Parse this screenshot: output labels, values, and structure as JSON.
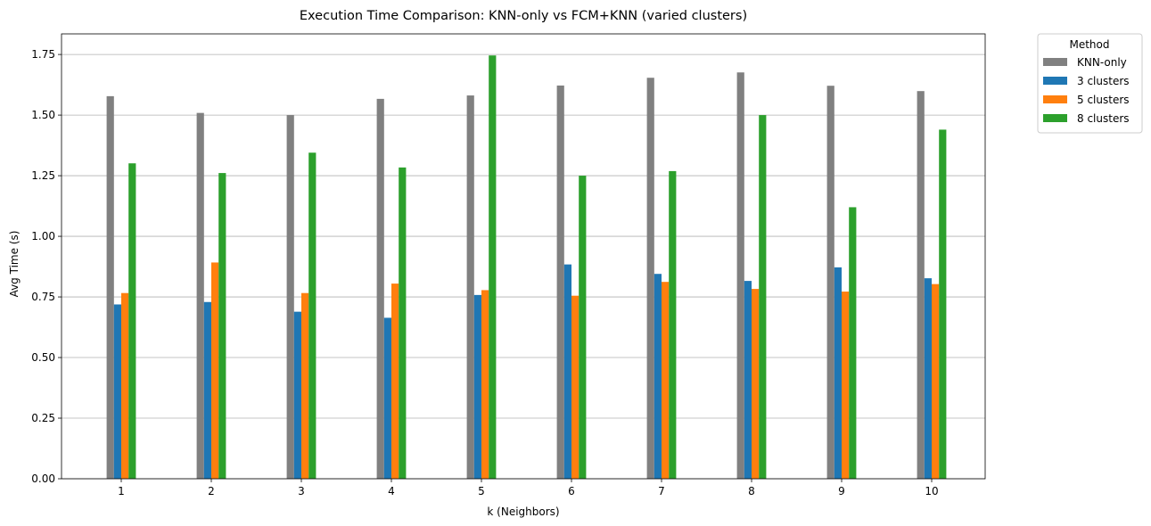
{
  "chart_data": {
    "type": "bar",
    "title": "Execution Time Comparison: KNN-only vs FCM+KNN (varied clusters)",
    "xlabel": "k (Neighbors)",
    "ylabel": "Avg Time (s)",
    "categories": [
      "1",
      "2",
      "3",
      "4",
      "5",
      "6",
      "7",
      "8",
      "9",
      "10"
    ],
    "ylim": [
      0,
      1.835
    ],
    "yticks": [
      "0.00",
      "0.25",
      "0.50",
      "0.75",
      "1.00",
      "1.25",
      "1.50",
      "1.75"
    ],
    "grid": "horizontal",
    "legend": {
      "title": "Method",
      "placement": "outside top-right"
    },
    "series": [
      {
        "name": "KNN-only",
        "color": "#808080",
        "values": [
          1.578,
          1.509,
          1.5,
          1.567,
          1.581,
          1.622,
          1.654,
          1.676,
          1.621,
          1.599
        ]
      },
      {
        "name": "3 clusters",
        "color": "#1f77b4",
        "values": [
          0.719,
          0.729,
          0.689,
          0.664,
          0.758,
          0.884,
          0.845,
          0.816,
          0.872,
          0.827
        ]
      },
      {
        "name": "5 clusters",
        "color": "#ff7f0e",
        "values": [
          0.766,
          0.892,
          0.766,
          0.805,
          0.778,
          0.755,
          0.812,
          0.783,
          0.772,
          0.803
        ]
      },
      {
        "name": "8 clusters",
        "color": "#2ca02c",
        "values": [
          1.301,
          1.261,
          1.345,
          1.284,
          1.746,
          1.25,
          1.269,
          1.5,
          1.12,
          1.44
        ]
      }
    ]
  }
}
